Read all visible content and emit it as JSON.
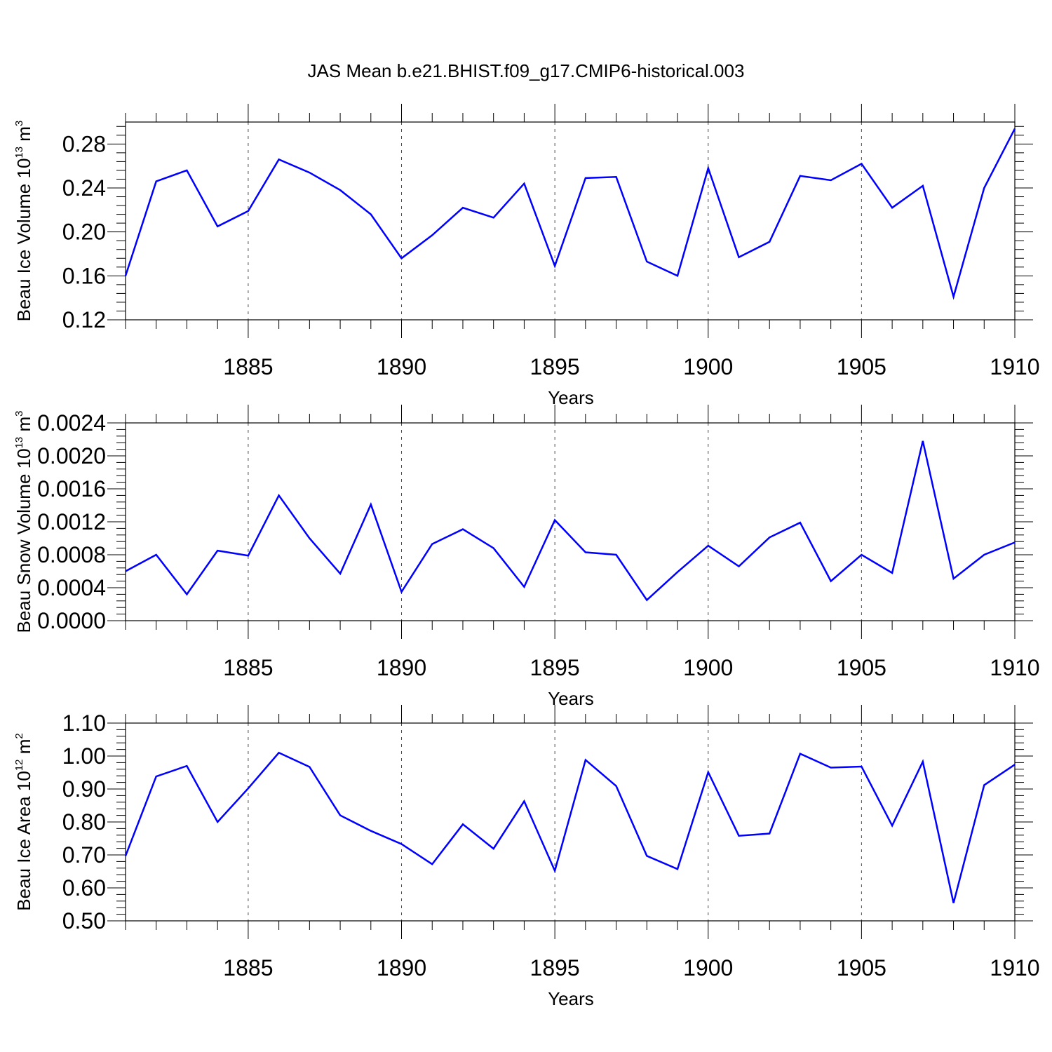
{
  "figure_title": "JAS Mean b.e21.BHIST.f09_g17.CMIP6-historical.003",
  "colors": {
    "series": "#0000ff",
    "axes": "#000000",
    "grid": "#000000"
  },
  "chart_data": [
    {
      "type": "line",
      "title": "",
      "xlabel": "Years",
      "ylabel": "Beau Ice Volume 10^13 m^3",
      "ylabel_parts": {
        "prefix": "Beau Ice Volume 10",
        "exp": "13",
        "unit": " m",
        "unit_exp": "3"
      },
      "xlim": [
        1881,
        1910
      ],
      "ylim": [
        0.12,
        0.3
      ],
      "xticks": [
        1885,
        1890,
        1895,
        1900,
        1905,
        1910
      ],
      "xtick_labels": [
        "1885",
        "1890",
        "1895",
        "1900",
        "1905",
        "1910"
      ],
      "yticks": [
        0.12,
        0.16,
        0.2,
        0.24,
        0.28
      ],
      "ytick_labels": [
        "0.12",
        "0.16",
        "0.20",
        "0.24",
        "0.28"
      ],
      "grid": "vertical dashed at major x ticks",
      "x": [
        1881,
        1882,
        1883,
        1884,
        1885,
        1886,
        1887,
        1888,
        1889,
        1890,
        1891,
        1892,
        1893,
        1894,
        1895,
        1896,
        1897,
        1898,
        1899,
        1900,
        1901,
        1902,
        1903,
        1904,
        1905,
        1906,
        1907,
        1908,
        1909,
        1910
      ],
      "series": [
        {
          "values": [
            0.16,
            0.246,
            0.256,
            0.205,
            0.219,
            0.266,
            0.254,
            0.238,
            0.216,
            0.176,
            0.197,
            0.222,
            0.213,
            0.244,
            0.169,
            0.249,
            0.25,
            0.173,
            0.16,
            0.258,
            0.177,
            0.191,
            0.251,
            0.247,
            0.262,
            0.222,
            0.242,
            0.141,
            0.24,
            0.294
          ]
        }
      ]
    },
    {
      "type": "line",
      "title": "",
      "xlabel": "Years",
      "ylabel": "Beau Snow Volume 10^13 m^3",
      "ylabel_parts": {
        "prefix": "Beau Snow Volume 10",
        "exp": "13",
        "unit": " m",
        "unit_exp": "3"
      },
      "xlim": [
        1881,
        1910
      ],
      "ylim": [
        0.0,
        0.0024
      ],
      "xticks": [
        1885,
        1890,
        1895,
        1900,
        1905,
        1910
      ],
      "xtick_labels": [
        "1885",
        "1890",
        "1895",
        "1900",
        "1905",
        "1910"
      ],
      "yticks": [
        0.0,
        0.0004,
        0.0008,
        0.0012,
        0.0016,
        0.002,
        0.0024
      ],
      "ytick_labels": [
        "0.0000",
        "0.0004",
        "0.0008",
        "0.0012",
        "0.0016",
        "0.0020",
        "0.0024"
      ],
      "grid": "vertical dashed at major x ticks",
      "x": [
        1881,
        1882,
        1883,
        1884,
        1885,
        1886,
        1887,
        1888,
        1889,
        1890,
        1891,
        1892,
        1893,
        1894,
        1895,
        1896,
        1897,
        1898,
        1899,
        1900,
        1901,
        1902,
        1903,
        1904,
        1905,
        1906,
        1907,
        1908,
        1909,
        1910
      ],
      "series": [
        {
          "values": [
            0.0006,
            0.0008,
            0.00032,
            0.00085,
            0.00079,
            0.00152,
            0.001,
            0.00057,
            0.00141,
            0.00035,
            0.00093,
            0.00111,
            0.00088,
            0.00041,
            0.00122,
            0.00083,
            0.0008,
            0.00025,
            0.00059,
            0.00091,
            0.00066,
            0.00101,
            0.00119,
            0.00048,
            0.0008,
            0.00058,
            0.00218,
            0.00051,
            0.0008,
            0.00095
          ]
        }
      ]
    },
    {
      "type": "line",
      "title": "",
      "xlabel": "Years",
      "ylabel": "Beau Ice Area 10^12 m^2",
      "ylabel_parts": {
        "prefix": "Beau Ice Area 10",
        "exp": "12",
        "unit": " m",
        "unit_exp": "2"
      },
      "xlim": [
        1881,
        1910
      ],
      "ylim": [
        0.5,
        1.1
      ],
      "xticks": [
        1885,
        1890,
        1895,
        1900,
        1905,
        1910
      ],
      "xtick_labels": [
        "1885",
        "1890",
        "1895",
        "1900",
        "1905",
        "1910"
      ],
      "yticks": [
        0.5,
        0.6,
        0.7,
        0.8,
        0.9,
        1.0,
        1.1
      ],
      "ytick_labels": [
        "0.50",
        "0.60",
        "0.70",
        "0.80",
        "0.90",
        "1.00",
        "1.10"
      ],
      "grid": "vertical dashed at major x ticks",
      "x": [
        1881,
        1882,
        1883,
        1884,
        1885,
        1886,
        1887,
        1888,
        1889,
        1890,
        1891,
        1892,
        1893,
        1894,
        1895,
        1896,
        1897,
        1898,
        1899,
        1900,
        1901,
        1902,
        1903,
        1904,
        1905,
        1906,
        1907,
        1908,
        1909,
        1910
      ],
      "series": [
        {
          "values": [
            0.697,
            0.938,
            0.97,
            0.8,
            0.902,
            1.01,
            0.967,
            0.82,
            0.773,
            0.733,
            0.672,
            0.793,
            0.719,
            0.863,
            0.652,
            0.988,
            0.909,
            0.697,
            0.657,
            0.951,
            0.758,
            0.765,
            1.007,
            0.965,
            0.968,
            0.789,
            0.983,
            0.554,
            0.912,
            0.974
          ]
        }
      ]
    }
  ]
}
